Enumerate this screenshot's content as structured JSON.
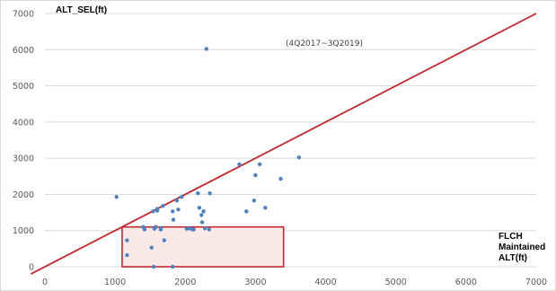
{
  "chart_data": {
    "type": "scatter",
    "ylabel": "ALT_SEL(ft)",
    "xlabel_lines": [
      "FLCH",
      "Maintained",
      "ALT(ft)"
    ],
    "annotation": "(4Q2017~3Q2019)",
    "xlim": [
      0,
      7000
    ],
    "ylim": [
      0,
      7000
    ],
    "x_ticks": [
      0,
      1000,
      2000,
      3000,
      4000,
      5000,
      6000,
      7000
    ],
    "y_ticks": [
      0,
      1000,
      2000,
      3000,
      4000,
      5000,
      6000,
      7000
    ],
    "grid": "horizontal",
    "reference_line": {
      "from": [
        -200,
        -200
      ],
      "to": [
        7000,
        7000
      ],
      "color": "#c0282d"
    },
    "highlight_box": {
      "x": [
        1100,
        3400
      ],
      "y": [
        0,
        1100
      ],
      "color": "#c0282d"
    },
    "point_color": "#4f81bd",
    "points": [
      [
        1020,
        1930
      ],
      [
        1170,
        730
      ],
      [
        1170,
        320
      ],
      [
        1400,
        1100
      ],
      [
        1420,
        1030
      ],
      [
        1520,
        530
      ],
      [
        1540,
        1530
      ],
      [
        1560,
        1050
      ],
      [
        1580,
        1100
      ],
      [
        1600,
        1600
      ],
      [
        1600,
        1550
      ],
      [
        1650,
        1070
      ],
      [
        1650,
        1030
      ],
      [
        1680,
        1680
      ],
      [
        1700,
        730
      ],
      [
        1820,
        1530
      ],
      [
        1830,
        1300
      ],
      [
        1880,
        1830
      ],
      [
        1900,
        1580
      ],
      [
        1950,
        1930
      ],
      [
        2020,
        1050
      ],
      [
        2060,
        1060
      ],
      [
        2100,
        1030
      ],
      [
        2120,
        1030
      ],
      [
        2180,
        2030
      ],
      [
        2200,
        1630
      ],
      [
        2230,
        1430
      ],
      [
        2240,
        1230
      ],
      [
        2260,
        1530
      ],
      [
        2280,
        1060
      ],
      [
        2300,
        6020
      ],
      [
        2340,
        1030
      ],
      [
        2350,
        2030
      ],
      [
        2770,
        2830
      ],
      [
        2870,
        1530
      ],
      [
        2980,
        1830
      ],
      [
        3000,
        2530
      ],
      [
        3060,
        2830
      ],
      [
        3140,
        1630
      ],
      [
        3360,
        2430
      ],
      [
        3620,
        3020
      ],
      [
        1550,
        0
      ],
      [
        1820,
        0
      ]
    ]
  }
}
